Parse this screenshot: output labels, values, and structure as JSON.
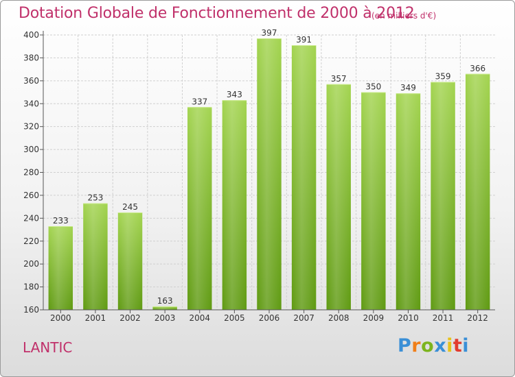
{
  "title": "Dotation Globale de Fonctionnement de 2000 à 2012",
  "subtitle": "(en milliers d'€)",
  "commune": "LANTIC",
  "logo": {
    "letters": [
      "P",
      "r",
      "o",
      "x",
      "i",
      "t",
      "i"
    ],
    "colors": [
      "#3a8fd6",
      "#f07f1a",
      "#7cb41e",
      "#3a8fd6",
      "#e8c21a",
      "#e23b2e",
      "#3a8fd6"
    ]
  },
  "colors": {
    "bar_top": "#a3d450",
    "bar_bottom": "#5f9a12",
    "grid": "#d0d0d0",
    "text": "#333333",
    "accent": "#c0306a"
  },
  "chart_data": {
    "type": "bar",
    "categories": [
      "2000",
      "2001",
      "2002",
      "2003",
      "2004",
      "2005",
      "2006",
      "2007",
      "2008",
      "2009",
      "2010",
      "2011",
      "2012"
    ],
    "values": [
      233,
      253,
      245,
      163,
      337,
      343,
      397,
      391,
      357,
      350,
      349,
      359,
      366
    ],
    "title": "Dotation Globale de Fonctionnement de 2000 à 2012",
    "subtitle": "(en milliers d'€)",
    "xlabel": "",
    "ylabel": "",
    "ylim": [
      160,
      400
    ],
    "yticks": [
      160,
      180,
      200,
      220,
      240,
      260,
      280,
      300,
      320,
      340,
      360,
      380,
      400
    ],
    "grid": true,
    "data_labels": true
  }
}
